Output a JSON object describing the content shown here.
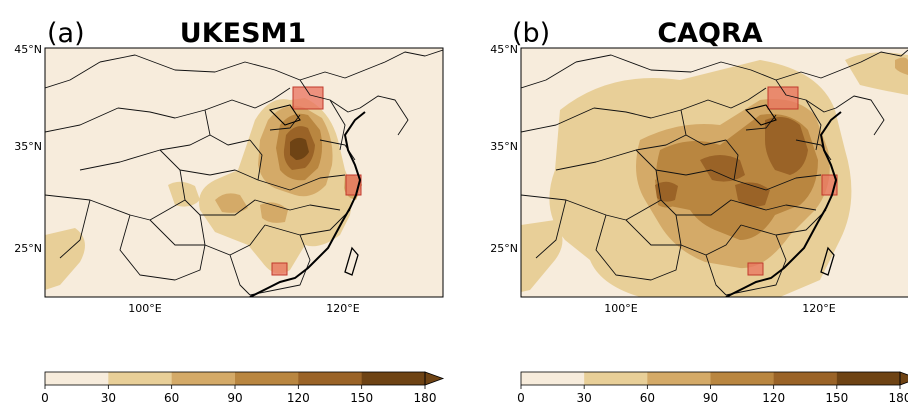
{
  "panels": [
    {
      "label": "(a)",
      "title": "UKESM1",
      "lat_ticks": [
        "45°N",
        "35°N",
        "25°N"
      ],
      "lon_ticks": [
        "100°E",
        "120°E"
      ],
      "colorbar_ticks": [
        "0",
        "30",
        "60",
        "90",
        "120",
        "150",
        "180"
      ]
    },
    {
      "label": "(b)",
      "title": "CAQRA",
      "lat_ticks": [
        "45°N",
        "35°N",
        "25°N"
      ],
      "lon_ticks": [
        "100°E",
        "120°E"
      ],
      "colorbar_ticks": [
        "0",
        "30",
        "60",
        "90",
        "120",
        "150",
        "180"
      ]
    }
  ],
  "colorbar": {
    "levels": [
      0,
      30,
      60,
      90,
      120,
      150,
      180
    ],
    "colors": [
      "#f7ecdc",
      "#e8cf98",
      "#d4aa68",
      "#b98640",
      "#9a6327",
      "#6e4314"
    ],
    "extend": "max"
  },
  "highlight_color": "#e9735f"
}
